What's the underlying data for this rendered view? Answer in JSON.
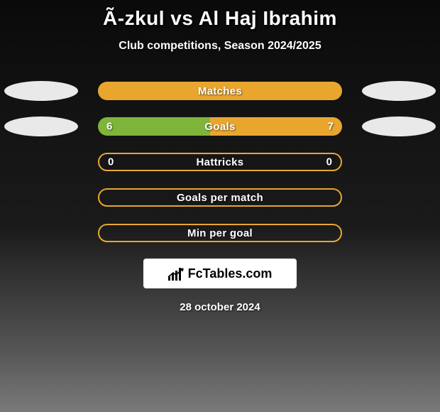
{
  "title": "Ã-zkul vs Al Haj Ibrahim",
  "subtitle": "Club competitions, Season 2024/2025",
  "date": "28 october 2024",
  "logo": {
    "text_prefix": "Fc",
    "text_suffix": "Tables.com"
  },
  "colors": {
    "accent_orange": "#e9a62f",
    "accent_green": "#7fb53a",
    "ellipse": "#e9e9e9",
    "text": "#ffffff",
    "logo_bg": "#ffffff",
    "logo_text": "#000000"
  },
  "rows": [
    {
      "label": "Matches",
      "left_ellipse": true,
      "right_ellipse": true,
      "left_value": "",
      "right_value": "",
      "fill_mode": "full",
      "fill_color": "#e9a62f",
      "border_color": "#e9a62f"
    },
    {
      "label": "Goals",
      "left_ellipse": true,
      "right_ellipse": true,
      "left_value": "6",
      "right_value": "7",
      "fill_mode": "split",
      "left_pct": 46,
      "right_pct": 54,
      "left_color": "#7fb53a",
      "right_color": "#e9a62f",
      "border_color": "#e9a62f"
    },
    {
      "label": "Hattricks",
      "left_ellipse": false,
      "right_ellipse": false,
      "left_value": "0",
      "right_value": "0",
      "fill_mode": "border",
      "border_color": "#e9a62f"
    },
    {
      "label": "Goals per match",
      "left_ellipse": false,
      "right_ellipse": false,
      "left_value": "",
      "right_value": "",
      "fill_mode": "border",
      "border_color": "#e9a62f"
    },
    {
      "label": "Min per goal",
      "left_ellipse": false,
      "right_ellipse": false,
      "left_value": "",
      "right_value": "",
      "fill_mode": "border",
      "border_color": "#e9a62f"
    }
  ]
}
